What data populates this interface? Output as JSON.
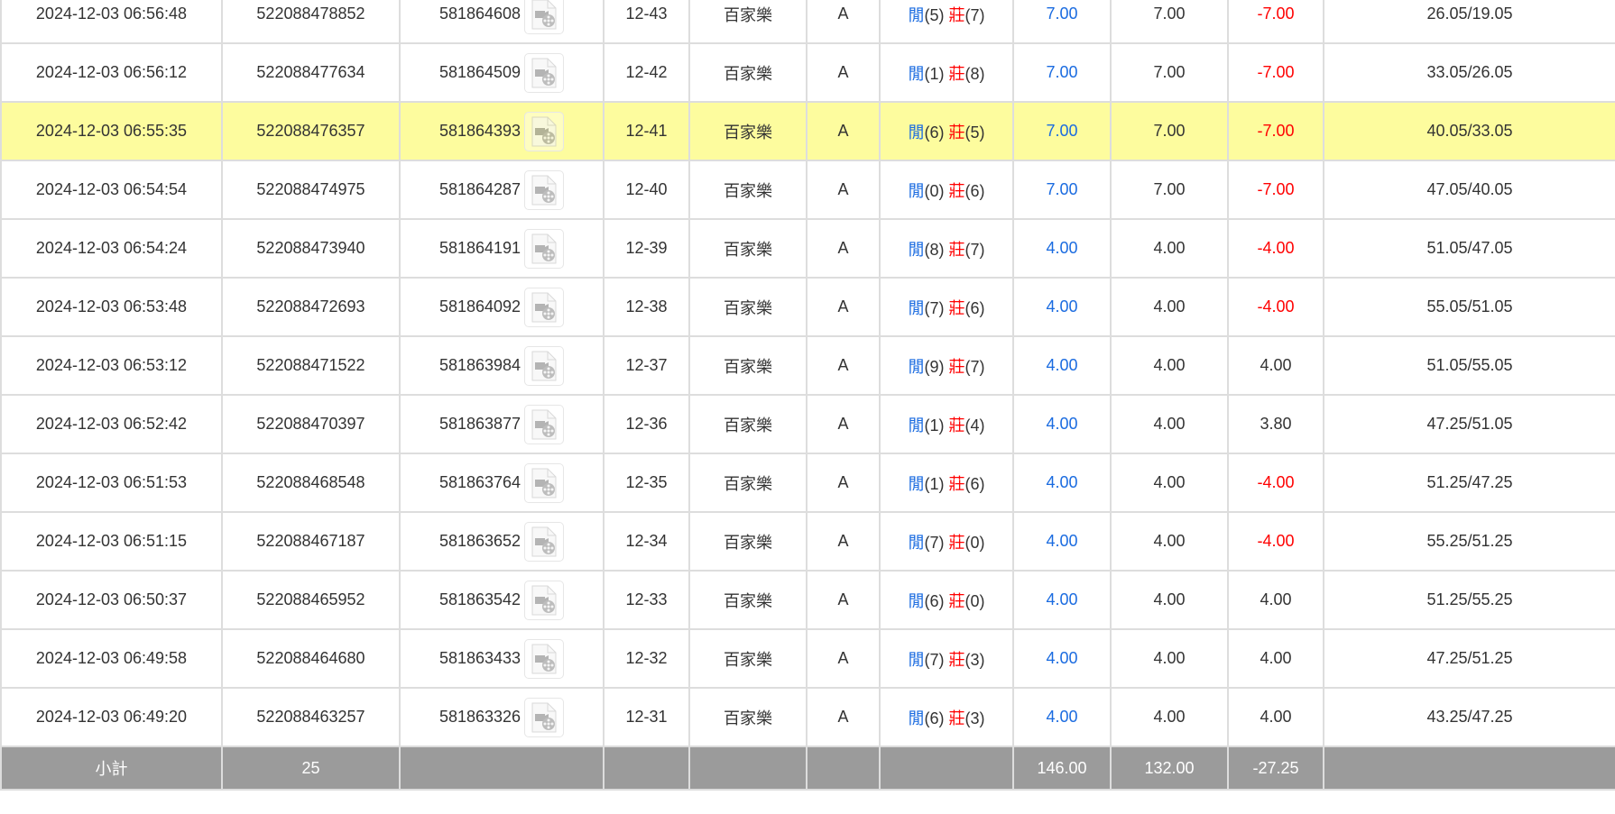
{
  "highlight_color": "#fdfc9e",
  "rows": [
    {
      "time": "2024-12-03 06:56:48",
      "bet_id": "522088478852",
      "round_id": "581864608",
      "shoe": "12-43",
      "game": "百家樂",
      "table": "A",
      "player_label": "閒",
      "player": "(5)",
      "banker_label": "莊",
      "banker": "(7)",
      "bet": "7.00",
      "valid": "7.00",
      "win": "-7.00",
      "win_neg": true,
      "balance": "26.05/19.05"
    },
    {
      "time": "2024-12-03 06:56:12",
      "bet_id": "522088477634",
      "round_id": "581864509",
      "shoe": "12-42",
      "game": "百家樂",
      "table": "A",
      "player_label": "閒",
      "player": "(1)",
      "banker_label": "莊",
      "banker": "(8)",
      "bet": "7.00",
      "valid": "7.00",
      "win": "-7.00",
      "win_neg": true,
      "balance": "33.05/26.05"
    },
    {
      "time": "2024-12-03 06:55:35",
      "bet_id": "522088476357",
      "round_id": "581864393",
      "shoe": "12-41",
      "game": "百家樂",
      "table": "A",
      "player_label": "閒",
      "player": "(6)",
      "banker_label": "莊",
      "banker": "(5)",
      "bet": "7.00",
      "valid": "7.00",
      "win": "-7.00",
      "win_neg": true,
      "balance": "40.05/33.05",
      "highlight": true
    },
    {
      "time": "2024-12-03 06:54:54",
      "bet_id": "522088474975",
      "round_id": "581864287",
      "shoe": "12-40",
      "game": "百家樂",
      "table": "A",
      "player_label": "閒",
      "player": "(0)",
      "banker_label": "莊",
      "banker": "(6)",
      "bet": "7.00",
      "valid": "7.00",
      "win": "-7.00",
      "win_neg": true,
      "balance": "47.05/40.05"
    },
    {
      "time": "2024-12-03 06:54:24",
      "bet_id": "522088473940",
      "round_id": "581864191",
      "shoe": "12-39",
      "game": "百家樂",
      "table": "A",
      "player_label": "閒",
      "player": "(8)",
      "banker_label": "莊",
      "banker": "(7)",
      "bet": "4.00",
      "valid": "4.00",
      "win": "-4.00",
      "win_neg": true,
      "balance": "51.05/47.05"
    },
    {
      "time": "2024-12-03 06:53:48",
      "bet_id": "522088472693",
      "round_id": "581864092",
      "shoe": "12-38",
      "game": "百家樂",
      "table": "A",
      "player_label": "閒",
      "player": "(7)",
      "banker_label": "莊",
      "banker": "(6)",
      "bet": "4.00",
      "valid": "4.00",
      "win": "-4.00",
      "win_neg": true,
      "balance": "55.05/51.05"
    },
    {
      "time": "2024-12-03 06:53:12",
      "bet_id": "522088471522",
      "round_id": "581863984",
      "shoe": "12-37",
      "game": "百家樂",
      "table": "A",
      "player_label": "閒",
      "player": "(9)",
      "banker_label": "莊",
      "banker": "(7)",
      "bet": "4.00",
      "valid": "4.00",
      "win": "4.00",
      "win_neg": false,
      "balance": "51.05/55.05"
    },
    {
      "time": "2024-12-03 06:52:42",
      "bet_id": "522088470397",
      "round_id": "581863877",
      "shoe": "12-36",
      "game": "百家樂",
      "table": "A",
      "player_label": "閒",
      "player": "(1)",
      "banker_label": "莊",
      "banker": "(4)",
      "bet": "4.00",
      "valid": "4.00",
      "win": "3.80",
      "win_neg": false,
      "balance": "47.25/51.05"
    },
    {
      "time": "2024-12-03 06:51:53",
      "bet_id": "522088468548",
      "round_id": "581863764",
      "shoe": "12-35",
      "game": "百家樂",
      "table": "A",
      "player_label": "閒",
      "player": "(1)",
      "banker_label": "莊",
      "banker": "(6)",
      "bet": "4.00",
      "valid": "4.00",
      "win": "-4.00",
      "win_neg": true,
      "balance": "51.25/47.25"
    },
    {
      "time": "2024-12-03 06:51:15",
      "bet_id": "522088467187",
      "round_id": "581863652",
      "shoe": "12-34",
      "game": "百家樂",
      "table": "A",
      "player_label": "閒",
      "player": "(7)",
      "banker_label": "莊",
      "banker": "(0)",
      "bet": "4.00",
      "valid": "4.00",
      "win": "-4.00",
      "win_neg": true,
      "balance": "55.25/51.25"
    },
    {
      "time": "2024-12-03 06:50:37",
      "bet_id": "522088465952",
      "round_id": "581863542",
      "shoe": "12-33",
      "game": "百家樂",
      "table": "A",
      "player_label": "閒",
      "player": "(6)",
      "banker_label": "莊",
      "banker": "(0)",
      "bet": "4.00",
      "valid": "4.00",
      "win": "4.00",
      "win_neg": false,
      "balance": "51.25/55.25"
    },
    {
      "time": "2024-12-03 06:49:58",
      "bet_id": "522088464680",
      "round_id": "581863433",
      "shoe": "12-32",
      "game": "百家樂",
      "table": "A",
      "player_label": "閒",
      "player": "(7)",
      "banker_label": "莊",
      "banker": "(3)",
      "bet": "4.00",
      "valid": "4.00",
      "win": "4.00",
      "win_neg": false,
      "balance": "47.25/51.25"
    },
    {
      "time": "2024-12-03 06:49:20",
      "bet_id": "522088463257",
      "round_id": "581863326",
      "shoe": "12-31",
      "game": "百家樂",
      "table": "A",
      "player_label": "閒",
      "player": "(6)",
      "banker_label": "莊",
      "banker": "(3)",
      "bet": "4.00",
      "valid": "4.00",
      "win": "4.00",
      "win_neg": false,
      "balance": "43.25/47.25"
    }
  ],
  "subtotal": {
    "label": "小計",
    "count": "25",
    "bet": "146.00",
    "valid": "132.00",
    "win": "-27.25"
  }
}
